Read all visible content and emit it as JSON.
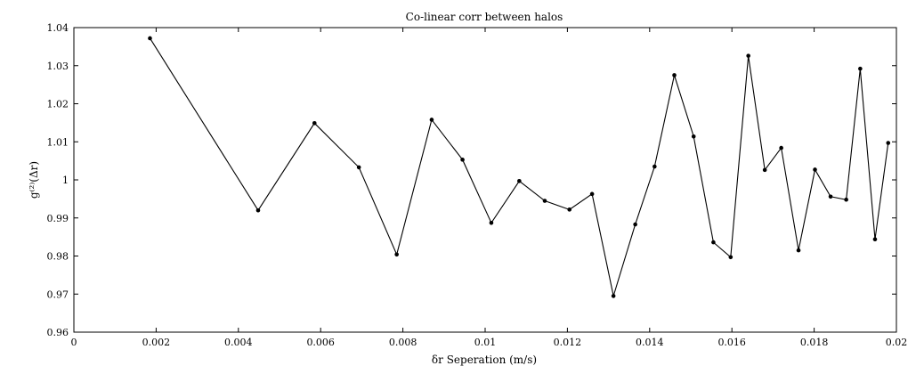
{
  "chart_data": {
    "type": "line",
    "title": "Co-linear corr between halos",
    "xlabel": "δr Seperation (m/s)",
    "ylabel": "g⁽²⁾(Δr)",
    "xlim": [
      0,
      0.02
    ],
    "ylim": [
      0.96,
      1.04
    ],
    "xticks": [
      "0",
      "0.002",
      "0.004",
      "0.006",
      "0.008",
      "0.01",
      "0.012",
      "0.014",
      "0.016",
      "0.018",
      "0.02"
    ],
    "yticks": [
      "0.96",
      "0.97",
      "0.98",
      "0.99",
      "1",
      "1.01",
      "1.02",
      "1.03",
      "1.04"
    ],
    "grid": false,
    "series": [
      {
        "color": "#000000",
        "marker": "dot",
        "x": [
          0.00185,
          0.00448,
          0.00585,
          0.00693,
          0.00785,
          0.0087,
          0.00945,
          0.01015,
          0.01083,
          0.01145,
          0.01205,
          0.0126,
          0.01312,
          0.01365,
          0.01412,
          0.0146,
          0.01507,
          0.01555,
          0.01597,
          0.0164,
          0.0168,
          0.0172,
          0.01762,
          0.01802,
          0.0184,
          0.01878,
          0.01912,
          0.01948,
          0.0198
        ],
        "y": [
          1.0372,
          0.992,
          1.0149,
          1.0033,
          0.9804,
          1.0158,
          1.0053,
          0.9887,
          0.9997,
          0.9945,
          0.9922,
          0.9963,
          0.9695,
          0.9883,
          1.0035,
          1.0275,
          1.0114,
          0.9836,
          0.9797,
          1.0326,
          1.0026,
          1.0084,
          0.9815,
          1.0027,
          0.9956,
          0.9948,
          1.0292,
          0.9844,
          1.0097
        ]
      }
    ]
  }
}
